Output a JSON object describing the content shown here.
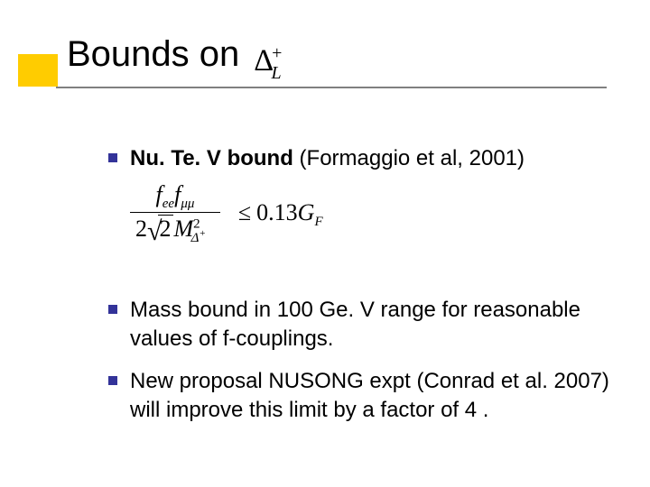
{
  "colors": {
    "accent": "#ffcc00",
    "bullet": "#333399",
    "underline": "#808080",
    "background": "#ffffff",
    "text": "#000000"
  },
  "title": {
    "text": "Bounds on",
    "symbol_html": "Δ<span class=\"sup\">+</span><span class=\"sub\">L</span>",
    "fontsize": 40
  },
  "formula": {
    "numerator_html": "<span class=\"fit\">f</span><span class=\"ssub\">ee</span><span class=\"fit\">f</span><span class=\"ssub\">μμ</span>",
    "denominator_html": "2<span class=\"sqrt\"><span class=\"radical\">√</span><span class=\"radicand\">2</span></span><span class=\"fit\">M</span><span class=\"ssup\">2</span><span class=\"ssub\" style=\"position:relative;left:-10px;\">Δ<span style=\"font-size:11px;vertical-align:super;\">+</span></span>",
    "relation": "≤",
    "rhs_html": "0.13<span class=\"fit\">G</span><span class=\"ssub\">F</span>"
  },
  "bullets": {
    "b1_strong": "Nu. Te. V bound",
    "b1_rest": " (Formaggio et al, 2001)",
    "b2": "Mass bound in 100 Ge. V range for reasonable values of f-couplings.",
    "b3": "New proposal NUSONG expt (Conrad et al. 2007) will improve this limit by a factor of 4 ."
  },
  "typography": {
    "body_fontsize": 24,
    "body_font": "Verdana",
    "math_font": "Times New Roman"
  }
}
